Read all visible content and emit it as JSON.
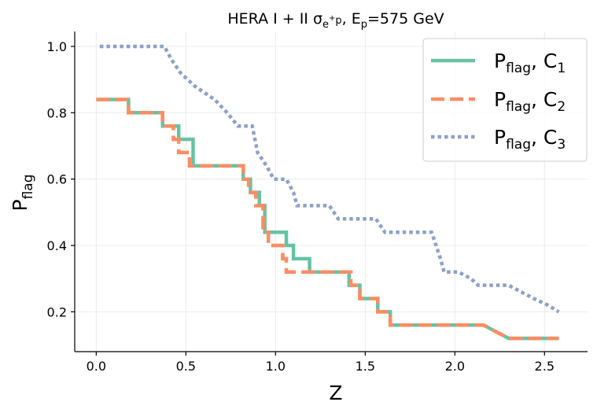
{
  "chart_data": {
    "type": "line",
    "title": {
      "main": "HERA I + II σ",
      "sub1": "e",
      "sup1": "+",
      "sub2": "p",
      "mid": ", E",
      "sub3": "p",
      "end": "=575 GeV"
    },
    "xlabel": "Z",
    "ylabel": {
      "main": "P",
      "sub": "flag"
    },
    "xlim": [
      -0.12,
      2.74
    ],
    "ylim": [
      0.08,
      1.045
    ],
    "x_ticks": [
      0.0,
      0.5,
      1.0,
      1.5,
      2.0,
      2.5
    ],
    "x_tick_labels": [
      "0.0",
      "0.5",
      "1.0",
      "1.5",
      "2.0",
      "2.5"
    ],
    "y_ticks": [
      0.2,
      0.4,
      0.6,
      0.8,
      1.0
    ],
    "y_tick_labels": [
      "0.2",
      "0.4",
      "0.6",
      "0.8",
      "1.0"
    ],
    "grid": true,
    "legend_position": "top-right",
    "series": [
      {
        "name": "P_flag, C_1",
        "label_main": "P",
        "label_sub": "flag",
        "label_sep": ", C",
        "label_idx": "1",
        "color": "#66c2a5",
        "style": "solid",
        "points": [
          [
            0.0,
            0.84
          ],
          [
            0.18,
            0.84
          ],
          [
            0.18,
            0.8
          ],
          [
            0.37,
            0.8
          ],
          [
            0.37,
            0.76
          ],
          [
            0.46,
            0.76
          ],
          [
            0.46,
            0.72
          ],
          [
            0.54,
            0.72
          ],
          [
            0.54,
            0.64
          ],
          [
            0.82,
            0.64
          ],
          [
            0.82,
            0.6
          ],
          [
            0.86,
            0.6
          ],
          [
            0.86,
            0.56
          ],
          [
            0.91,
            0.56
          ],
          [
            0.91,
            0.52
          ],
          [
            0.94,
            0.52
          ],
          [
            0.94,
            0.44
          ],
          [
            1.06,
            0.44
          ],
          [
            1.06,
            0.4
          ],
          [
            1.1,
            0.4
          ],
          [
            1.1,
            0.36
          ],
          [
            1.19,
            0.36
          ],
          [
            1.19,
            0.32
          ],
          [
            1.41,
            0.32
          ],
          [
            1.41,
            0.28
          ],
          [
            1.47,
            0.28
          ],
          [
            1.47,
            0.24
          ],
          [
            1.57,
            0.24
          ],
          [
            1.57,
            0.2
          ],
          [
            1.64,
            0.2
          ],
          [
            1.64,
            0.16
          ],
          [
            2.16,
            0.16
          ],
          [
            2.23,
            0.14
          ],
          [
            2.3,
            0.12
          ],
          [
            2.58,
            0.12
          ]
        ]
      },
      {
        "name": "P_flag, C_2",
        "label_main": "P",
        "label_sub": "flag",
        "label_sep": ", C",
        "label_idx": "2",
        "color": "#fc8d62",
        "style": "dashed",
        "points": [
          [
            0.0,
            0.84
          ],
          [
            0.18,
            0.84
          ],
          [
            0.18,
            0.8
          ],
          [
            0.37,
            0.8
          ],
          [
            0.37,
            0.76
          ],
          [
            0.43,
            0.76
          ],
          [
            0.43,
            0.72
          ],
          [
            0.46,
            0.72
          ],
          [
            0.46,
            0.68
          ],
          [
            0.52,
            0.68
          ],
          [
            0.52,
            0.64
          ],
          [
            0.82,
            0.64
          ],
          [
            0.82,
            0.6
          ],
          [
            0.85,
            0.6
          ],
          [
            0.85,
            0.56
          ],
          [
            0.89,
            0.56
          ],
          [
            0.89,
            0.52
          ],
          [
            0.93,
            0.52
          ],
          [
            0.93,
            0.44
          ],
          [
            0.96,
            0.44
          ],
          [
            0.96,
            0.4
          ],
          [
            1.04,
            0.4
          ],
          [
            1.04,
            0.36
          ],
          [
            1.06,
            0.36
          ],
          [
            1.06,
            0.32
          ],
          [
            1.42,
            0.32
          ],
          [
            1.42,
            0.28
          ],
          [
            1.47,
            0.28
          ],
          [
            1.47,
            0.24
          ],
          [
            1.57,
            0.24
          ],
          [
            1.57,
            0.2
          ],
          [
            1.64,
            0.2
          ],
          [
            1.64,
            0.16
          ],
          [
            2.16,
            0.16
          ],
          [
            2.23,
            0.14
          ],
          [
            2.3,
            0.12
          ],
          [
            2.58,
            0.12
          ]
        ]
      },
      {
        "name": "P_flag, C_3",
        "label_main": "P",
        "label_sub": "flag",
        "label_sep": ", C",
        "label_idx": "3",
        "color": "#8da0cb",
        "style": "dotted",
        "points": [
          [
            0.02,
            1.0
          ],
          [
            0.38,
            1.0
          ],
          [
            0.42,
            0.96
          ],
          [
            0.47,
            0.92
          ],
          [
            0.55,
            0.88
          ],
          [
            0.66,
            0.84
          ],
          [
            0.73,
            0.8
          ],
          [
            0.79,
            0.76
          ],
          [
            0.87,
            0.76
          ],
          [
            0.9,
            0.68
          ],
          [
            0.95,
            0.64
          ],
          [
            0.99,
            0.6
          ],
          [
            1.06,
            0.6
          ],
          [
            1.1,
            0.56
          ],
          [
            1.12,
            0.52
          ],
          [
            1.3,
            0.52
          ],
          [
            1.35,
            0.48
          ],
          [
            1.56,
            0.48
          ],
          [
            1.61,
            0.44
          ],
          [
            1.87,
            0.44
          ],
          [
            1.92,
            0.36
          ],
          [
            1.94,
            0.32
          ],
          [
            2.02,
            0.32
          ],
          [
            2.09,
            0.3
          ],
          [
            2.13,
            0.28
          ],
          [
            2.3,
            0.28
          ],
          [
            2.37,
            0.26
          ],
          [
            2.44,
            0.24
          ],
          [
            2.52,
            0.22
          ],
          [
            2.58,
            0.2
          ]
        ]
      }
    ]
  }
}
